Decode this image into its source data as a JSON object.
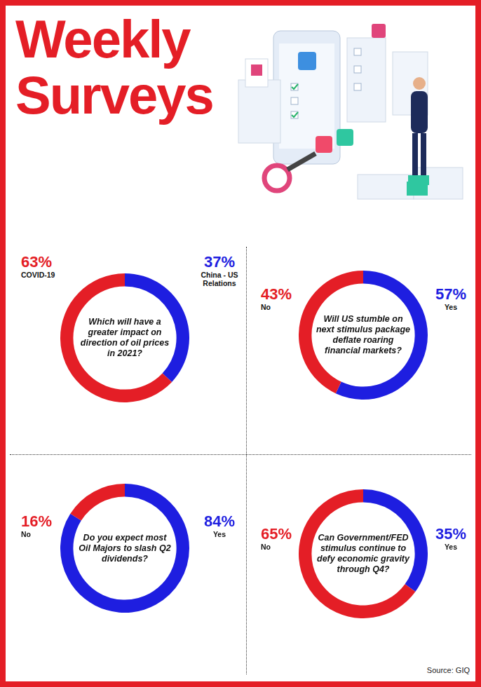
{
  "title": "Weekly Surveys",
  "source": "Source: GIQ",
  "chart_data": [
    {
      "type": "doughnut",
      "title": "Which will have a greater impact on direction of oil prices in 2021?",
      "categories": [
        "China - US Relations",
        "COVID-19"
      ],
      "values": [
        37,
        63
      ],
      "value_labels": [
        "37%",
        "63%"
      ],
      "colors": [
        "#1e1ee0",
        "#e41e26"
      ],
      "data_labels": true
    },
    {
      "type": "doughnut",
      "title": "Will US stumble on next stimulus package deflate roaring financial markets?",
      "categories": [
        "Yes",
        "No"
      ],
      "values": [
        57,
        43
      ],
      "value_labels": [
        "57%",
        "43%"
      ],
      "colors": [
        "#1e1ee0",
        "#e41e26"
      ],
      "data_labels": true
    },
    {
      "type": "doughnut",
      "title": "Do you expect most Oil Majors to slash Q2 dividends?",
      "categories": [
        "Yes",
        "No"
      ],
      "values": [
        84,
        16
      ],
      "value_labels": [
        "84%",
        "16%"
      ],
      "colors": [
        "#1e1ee0",
        "#e41e26"
      ],
      "data_labels": true
    },
    {
      "type": "doughnut",
      "title": "Can Government/FED stimulus continue to defy economic gravity through Q4?",
      "categories": [
        "Yes",
        "No"
      ],
      "values": [
        35,
        65
      ],
      "value_labels": [
        "35%",
        "65%"
      ],
      "colors": [
        "#1e1ee0",
        "#e41e26"
      ],
      "data_labels": true
    }
  ]
}
